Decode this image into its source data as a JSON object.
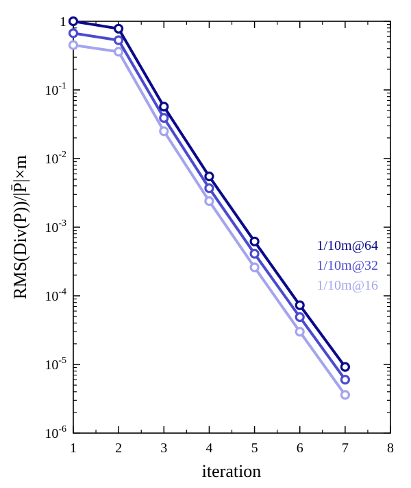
{
  "chart_data": {
    "type": "line",
    "title": "",
    "xlabel": "iteration",
    "ylabel": "RMS(Div(P))/|P̄|×m",
    "xlim": [
      1,
      8
    ],
    "ylim": [
      1e-06,
      1
    ],
    "yscale": "log",
    "grid": false,
    "legend_position": "right-middle",
    "x_ticks": [
      "1",
      "2",
      "3",
      "4",
      "5",
      "6",
      "7",
      "8"
    ],
    "y_ticks": [
      {
        "base": "1",
        "exp": ""
      },
      {
        "base": "10",
        "exp": "-1"
      },
      {
        "base": "10",
        "exp": "-2"
      },
      {
        "base": "10",
        "exp": "-3"
      },
      {
        "base": "10",
        "exp": "-4"
      },
      {
        "base": "10",
        "exp": "-5"
      },
      {
        "base": "10",
        "exp": "-6"
      }
    ],
    "x": [
      1,
      2,
      3,
      4,
      5,
      6,
      7
    ],
    "series": [
      {
        "name": "1/10m@64",
        "color": "#0a0a8a",
        "values": [
          1.0,
          0.78,
          0.057,
          0.0055,
          0.00062,
          7.3e-05,
          9.2e-06
        ]
      },
      {
        "name": "1/10m@32",
        "color": "#4b4bd0",
        "values": [
          0.67,
          0.53,
          0.039,
          0.0037,
          0.00041,
          4.9e-05,
          6e-06
        ]
      },
      {
        "name": "1/10m@16",
        "color": "#a4a4ee",
        "values": [
          0.45,
          0.36,
          0.025,
          0.0024,
          0.00026,
          3e-05,
          3.6e-06
        ]
      }
    ]
  }
}
